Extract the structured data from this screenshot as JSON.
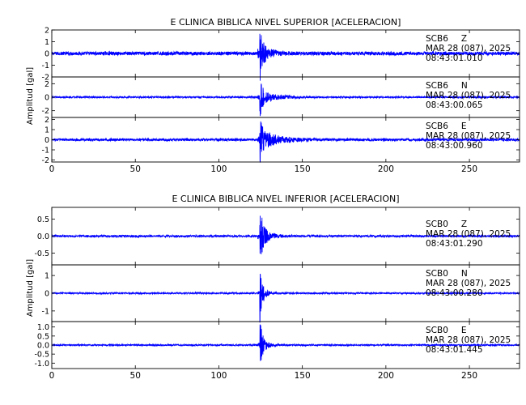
{
  "chart_data": [
    {
      "type": "line",
      "title": "E CLINICA BIBLICA NIVEL SUPERIOR [ACELERACION]",
      "ylabel": "Amplitud [gal]",
      "xlabel": "",
      "xlim": [
        0,
        280
      ],
      "xticks": [
        "0",
        "50",
        "100",
        "150",
        "200",
        "250"
      ],
      "color": "#0000ff",
      "event_time": 124.5,
      "traces": [
        {
          "station": "SCB6",
          "component": "Z",
          "date": "MAR 28 (087), 2025",
          "time": "08:43:01.010",
          "ylim": [
            -2,
            2
          ],
          "yticks": [
            "2",
            "1",
            "0",
            "-1",
            "-2"
          ],
          "noise": 0.15,
          "peak": 1.9,
          "tail": 0.75,
          "decay": 6
        },
        {
          "station": "SCB6",
          "component": "N",
          "date": "MAR 28 (087), 2025",
          "time": "08:43:00.065",
          "ylim": [
            -3,
            3
          ],
          "yticks": [
            "2",
            "0",
            "-2"
          ],
          "noise": 0.12,
          "peak": 2.6,
          "tail": 0.9,
          "decay": 9
        },
        {
          "station": "SCB6",
          "component": "E",
          "date": "MAR 28 (087), 2025",
          "time": "08:43:00.960",
          "ylim": [
            -2.2,
            2.2
          ],
          "yticks": [
            "2",
            "1",
            "0",
            "-1",
            "-2"
          ],
          "noise": 0.12,
          "peak": 2.0,
          "tail": 1.0,
          "decay": 10
        }
      ]
    },
    {
      "type": "line",
      "title": "E CLINICA BIBLICA NIVEL INFERIOR [ACELERACION]",
      "ylabel": "Amplitud [gal]",
      "xlabel": "",
      "xlim": [
        0,
        280
      ],
      "xticks": [
        "0",
        "50",
        "100",
        "150",
        "200",
        "250"
      ],
      "color": "#0000ff",
      "event_time": 124.5,
      "traces": [
        {
          "station": "SCB0",
          "component": "Z",
          "date": "MAR 28 (087), 2025",
          "time": "08:43:01.290",
          "ylim": [
            -0.85,
            0.85
          ],
          "yticks": [
            "0.5",
            "0.0",
            "-0.5"
          ],
          "noise": 0.03,
          "peak": 0.8,
          "tail": 0.3,
          "decay": 5
        },
        {
          "station": "SCB0",
          "component": "N",
          "date": "MAR 28 (087), 2025",
          "time": "08:43:00.280",
          "ylim": [
            -1.6,
            1.6
          ],
          "yticks": [
            "1",
            "0",
            "-1"
          ],
          "noise": 0.04,
          "peak": 1.6,
          "tail": 0.25,
          "decay": 4
        },
        {
          "station": "SCB0",
          "component": "E",
          "date": "MAR 28 (087), 2025",
          "time": "08:43:01.445",
          "ylim": [
            -1.3,
            1.3
          ],
          "yticks": [
            "1.0",
            "0.5",
            "0.0",
            "-0.5",
            "-1.0"
          ],
          "noise": 0.04,
          "peak": 1.3,
          "tail": 0.35,
          "decay": 4
        }
      ]
    }
  ]
}
